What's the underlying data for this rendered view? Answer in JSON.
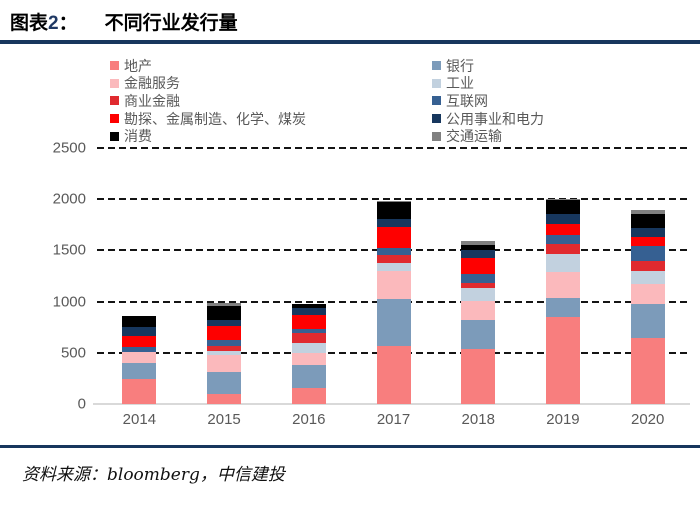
{
  "header": {
    "prefix": "图表",
    "number": "2",
    "colon": "：",
    "title": "不同行业发行量"
  },
  "accent_colors": {
    "rule_navy": "#17365D",
    "title_number_blue": "#1F3864",
    "axis_text_gray": "#595959",
    "baseline_gray": "#D9D9D9",
    "gridline_black": "#141414"
  },
  "legend": {
    "columns": [
      [
        "地产",
        "金融服务",
        "商业金融",
        "勘探、金属制造、化学、煤炭",
        "消费"
      ],
      [
        "银行",
        "工业",
        "互联网",
        "公用事业和电力",
        "交通运输"
      ]
    ]
  },
  "chart_data": {
    "type": "bar",
    "stacked": true,
    "title": "不同行业发行量",
    "categories": [
      "2014",
      "2015",
      "2016",
      "2017",
      "2018",
      "2019",
      "2020"
    ],
    "series": [
      {
        "name": "地产",
        "color": "#F87E7E",
        "values": [
          240,
          100,
          160,
          570,
          540,
          850,
          645
        ]
      },
      {
        "name": "银行",
        "color": "#7C9BBA",
        "values": [
          165,
          210,
          220,
          455,
          285,
          185,
          335
        ]
      },
      {
        "name": "金融服务",
        "color": "#FBB9BC",
        "values": [
          100,
          165,
          120,
          275,
          180,
          250,
          195
        ]
      },
      {
        "name": "工业",
        "color": "#C2D1DF",
        "values": [
          0,
          42,
          100,
          80,
          125,
          180,
          120
        ]
      },
      {
        "name": "商业金融",
        "color": "#E02A2F",
        "values": [
          0,
          46,
          95,
          80,
          55,
          100,
          105
        ]
      },
      {
        "name": "互联网",
        "color": "#366092",
        "values": [
          52,
          59,
          40,
          60,
          82,
          90,
          145
        ]
      },
      {
        "name": "勘探、金属制造、化学、煤炭",
        "color": "#FE0000",
        "values": [
          110,
          137,
          135,
          210,
          160,
          105,
          85
        ]
      },
      {
        "name": "公用事业和电力",
        "color": "#17375E",
        "values": [
          85,
          59,
          70,
          75,
          82,
          100,
          90
        ]
      },
      {
        "name": "消费",
        "color": "#000000",
        "values": [
          105,
          137,
          40,
          165,
          42,
          130,
          140
        ]
      },
      {
        "name": "交通运输",
        "color": "#808080",
        "values": [
          0,
          32,
          0,
          15,
          46,
          10,
          32
        ]
      }
    ],
    "ylim": [
      0,
      2500
    ],
    "yticks": [
      0,
      500,
      1000,
      1500,
      2000,
      2500
    ],
    "grid": "dashed-horizontal",
    "legend_position": "top"
  },
  "footer": {
    "source": "资料来源：bloomberg，中信建投"
  }
}
